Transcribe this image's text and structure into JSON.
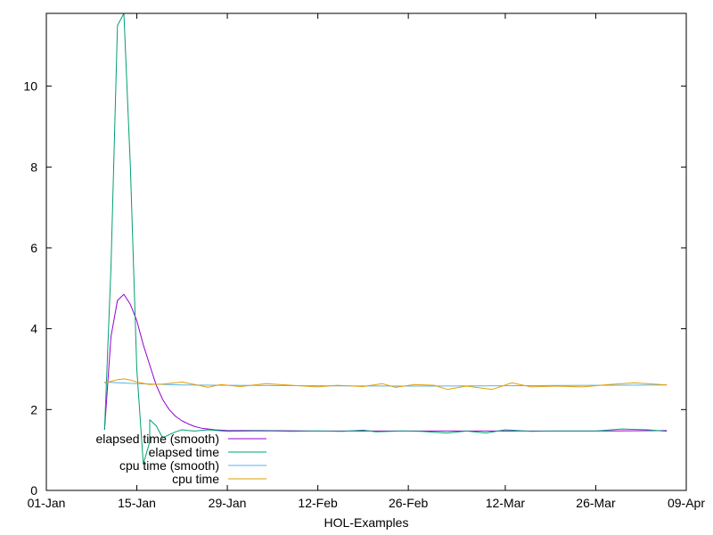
{
  "chart_data": {
    "type": "line",
    "title": "",
    "xlabel": "HOL-Examples",
    "ylabel": "",
    "x_domain": [
      "2000-01-01",
      "2000-04-09"
    ],
    "ylim": [
      0,
      11.8
    ],
    "x_ticks": [
      {
        "date": "2000-01-01",
        "label": "01-Jan"
      },
      {
        "date": "2000-01-15",
        "label": "15-Jan"
      },
      {
        "date": "2000-01-29",
        "label": "29-Jan"
      },
      {
        "date": "2000-02-12",
        "label": "12-Feb"
      },
      {
        "date": "2000-02-26",
        "label": "26-Feb"
      },
      {
        "date": "2000-03-12",
        "label": "12-Mar"
      },
      {
        "date": "2000-03-26",
        "label": "26-Mar"
      },
      {
        "date": "2000-04-09",
        "label": "09-Apr"
      }
    ],
    "y_ticks": [
      0,
      2,
      4,
      6,
      8,
      10
    ],
    "grid": false,
    "legend_position": "bottom-left",
    "series": [
      {
        "name": "elapsed time (smooth)",
        "color": "#9400d3",
        "points": [
          [
            "2000-01-10",
            1.5
          ],
          [
            "2000-01-11",
            3.8
          ],
          [
            "2000-01-12",
            4.7
          ],
          [
            "2000-01-13",
            4.85
          ],
          [
            "2000-01-14",
            4.6
          ],
          [
            "2000-01-15",
            4.2
          ],
          [
            "2000-01-16",
            3.6
          ],
          [
            "2000-01-17",
            3.1
          ],
          [
            "2000-01-18",
            2.6
          ],
          [
            "2000-01-19",
            2.25
          ],
          [
            "2000-01-20",
            2.0
          ],
          [
            "2000-01-21",
            1.83
          ],
          [
            "2000-01-22",
            1.72
          ],
          [
            "2000-01-23",
            1.64
          ],
          [
            "2000-01-24",
            1.58
          ],
          [
            "2000-01-25",
            1.54
          ],
          [
            "2000-01-27",
            1.5
          ],
          [
            "2000-01-29",
            1.48
          ],
          [
            "2000-02-03",
            1.48
          ],
          [
            "2000-02-12",
            1.47
          ],
          [
            "2000-02-26",
            1.47
          ],
          [
            "2000-03-12",
            1.47
          ],
          [
            "2000-03-26",
            1.47
          ],
          [
            "2000-04-06",
            1.48
          ]
        ]
      },
      {
        "name": "elapsed time",
        "color": "#009e73",
        "points": [
          [
            "2000-01-10",
            1.5
          ],
          [
            "2000-01-11",
            5.5
          ],
          [
            "2000-01-12",
            11.5
          ],
          [
            "2000-01-13",
            11.8
          ],
          [
            "2000-01-14",
            8.0
          ],
          [
            "2000-01-15",
            3.0
          ],
          [
            "2000-01-16",
            0.65
          ],
          [
            "2000-01-17",
            1.2
          ],
          [
            "2000-01-17",
            1.75
          ],
          [
            "2000-01-18",
            1.6
          ],
          [
            "2000-01-19",
            1.3
          ],
          [
            "2000-01-20",
            1.38
          ],
          [
            "2000-01-21",
            1.45
          ],
          [
            "2000-01-22",
            1.5
          ],
          [
            "2000-01-23",
            1.48
          ],
          [
            "2000-01-24",
            1.47
          ],
          [
            "2000-01-26",
            1.5
          ],
          [
            "2000-01-29",
            1.46
          ],
          [
            "2000-02-02",
            1.47
          ],
          [
            "2000-02-05",
            1.47
          ],
          [
            "2000-02-08",
            1.46
          ],
          [
            "2000-02-12",
            1.47
          ],
          [
            "2000-02-16",
            1.46
          ],
          [
            "2000-02-19",
            1.49
          ],
          [
            "2000-02-21",
            1.45
          ],
          [
            "2000-02-25",
            1.47
          ],
          [
            "2000-02-28",
            1.46
          ],
          [
            "2000-03-03",
            1.42
          ],
          [
            "2000-03-06",
            1.47
          ],
          [
            "2000-03-09",
            1.42
          ],
          [
            "2000-03-12",
            1.5
          ],
          [
            "2000-03-16",
            1.46
          ],
          [
            "2000-03-20",
            1.47
          ],
          [
            "2000-03-26",
            1.47
          ],
          [
            "2000-03-30",
            1.52
          ],
          [
            "2000-04-03",
            1.5
          ],
          [
            "2000-04-06",
            1.46
          ]
        ]
      },
      {
        "name": "cpu time (smooth)",
        "color": "#56b4e9",
        "points": [
          [
            "2000-01-10",
            2.68
          ],
          [
            "2000-01-15",
            2.64
          ],
          [
            "2000-01-22",
            2.61
          ],
          [
            "2000-01-29",
            2.6
          ],
          [
            "2000-02-12",
            2.59
          ],
          [
            "2000-02-26",
            2.58
          ],
          [
            "2000-03-12",
            2.59
          ],
          [
            "2000-03-26",
            2.6
          ],
          [
            "2000-04-06",
            2.61
          ]
        ]
      },
      {
        "name": "cpu time",
        "color": "#e69f00",
        "points": [
          [
            "2000-01-10",
            2.65
          ],
          [
            "2000-01-11",
            2.7
          ],
          [
            "2000-01-12",
            2.74
          ],
          [
            "2000-01-13",
            2.76
          ],
          [
            "2000-01-14",
            2.73
          ],
          [
            "2000-01-15",
            2.68
          ],
          [
            "2000-01-17",
            2.62
          ],
          [
            "2000-01-19",
            2.63
          ],
          [
            "2000-01-22",
            2.68
          ],
          [
            "2000-01-24",
            2.62
          ],
          [
            "2000-01-26",
            2.55
          ],
          [
            "2000-01-28",
            2.62
          ],
          [
            "2000-01-31",
            2.57
          ],
          [
            "2000-02-04",
            2.64
          ],
          [
            "2000-02-08",
            2.6
          ],
          [
            "2000-02-12",
            2.56
          ],
          [
            "2000-02-15",
            2.6
          ],
          [
            "2000-02-19",
            2.57
          ],
          [
            "2000-02-22",
            2.64
          ],
          [
            "2000-02-24",
            2.55
          ],
          [
            "2000-02-27",
            2.62
          ],
          [
            "2000-03-01",
            2.6
          ],
          [
            "2000-03-03",
            2.5
          ],
          [
            "2000-03-06",
            2.58
          ],
          [
            "2000-03-10",
            2.5
          ],
          [
            "2000-03-13",
            2.66
          ],
          [
            "2000-03-16",
            2.56
          ],
          [
            "2000-03-20",
            2.58
          ],
          [
            "2000-03-24",
            2.56
          ],
          [
            "2000-03-28",
            2.62
          ],
          [
            "2000-04-01",
            2.66
          ],
          [
            "2000-04-04",
            2.63
          ],
          [
            "2000-04-06",
            2.61
          ]
        ]
      }
    ]
  }
}
